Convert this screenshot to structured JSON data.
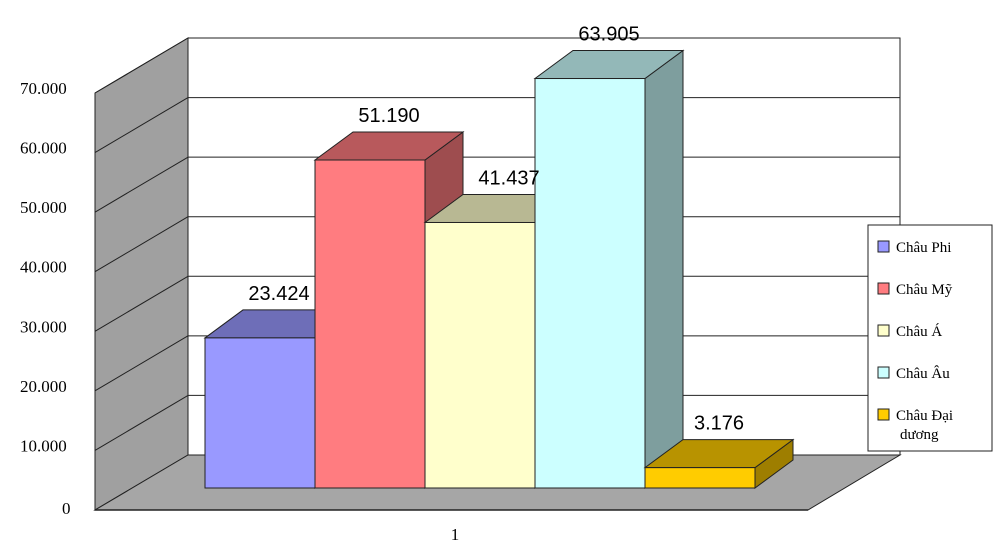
{
  "chart_data": {
    "type": "bar",
    "categories": [
      "1"
    ],
    "series": [
      {
        "name": "Châu Phi",
        "values": [
          23424
        ],
        "label": "23.424",
        "color": "#9999ff"
      },
      {
        "name": "Châu Mỹ",
        "values": [
          51190
        ],
        "label": "51.190",
        "color": "#ff7c80"
      },
      {
        "name": "Châu Á",
        "values": [
          41437
        ],
        "label": "41.437",
        "color": "#ffffcc"
      },
      {
        "name": "Châu Âu",
        "values": [
          63905
        ],
        "label": "63.905",
        "color": "#ccffff"
      },
      {
        "name": "Châu Đại dương",
        "values": [
          3176
        ],
        "label": "3.176",
        "color": "#ffcc00"
      }
    ],
    "ylim": [
      0,
      70000
    ],
    "yticks": [
      "0",
      "10.000",
      "20.000",
      "30.000",
      "40.000",
      "50.000",
      "60.000",
      "70.000"
    ],
    "grid": true,
    "legend": "right",
    "title": "",
    "xlabel": "",
    "ylabel": ""
  }
}
